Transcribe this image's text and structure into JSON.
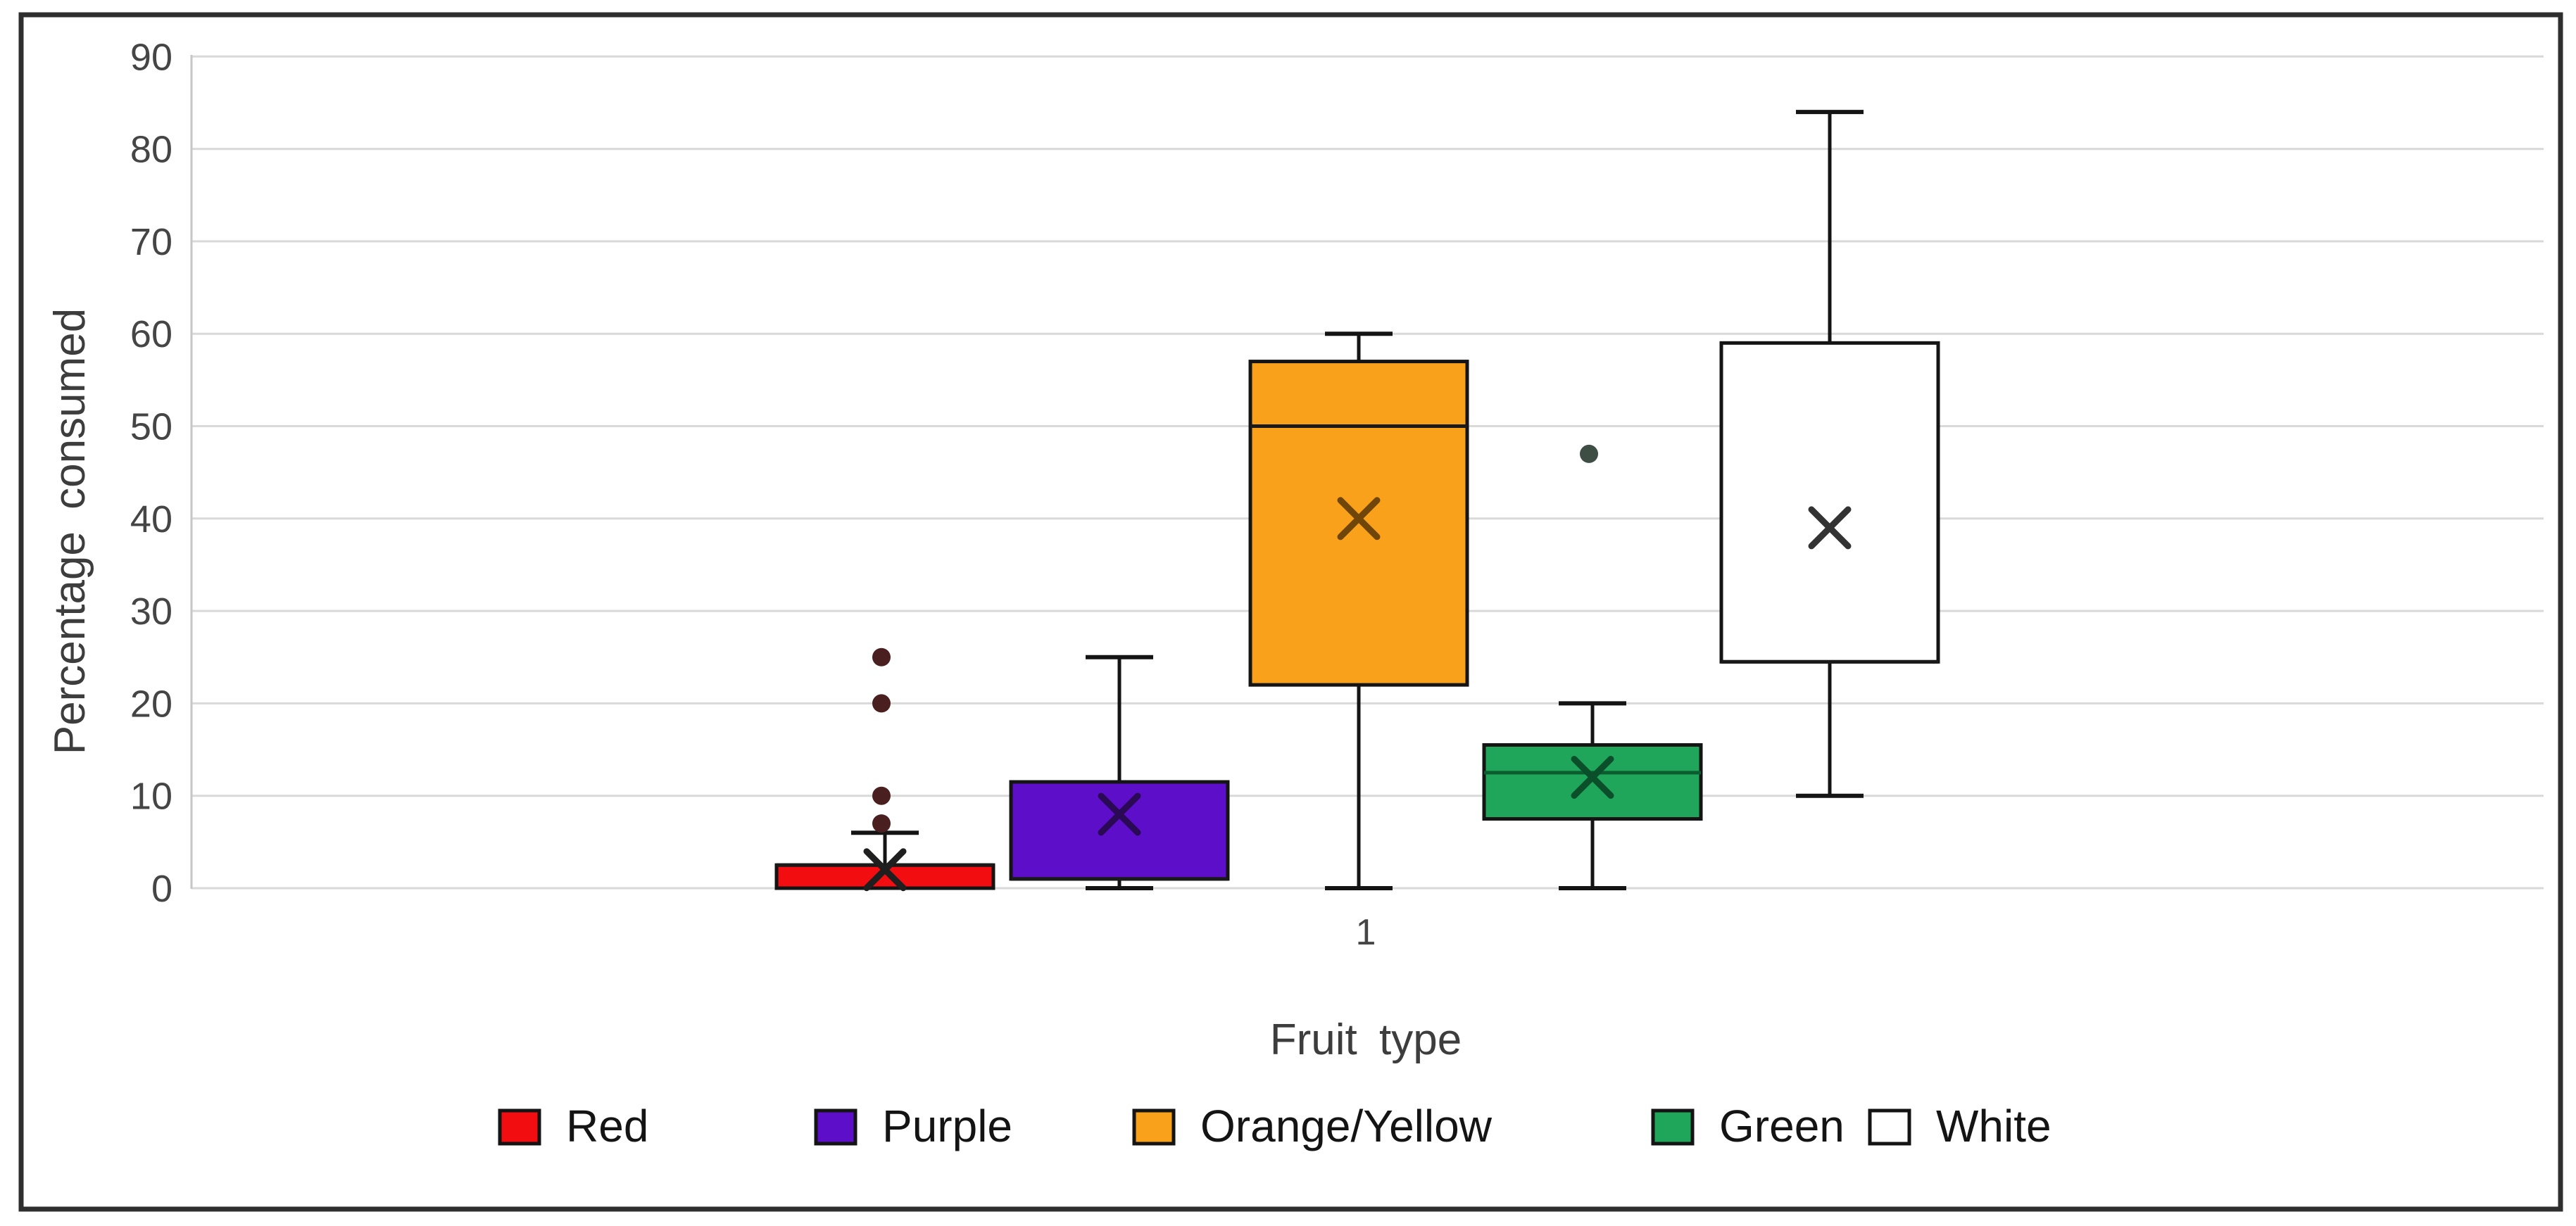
{
  "chart_data": {
    "type": "box",
    "title": "",
    "xlabel": "Fruit type",
    "ylabel": "Percentage consumed",
    "categories": [
      "1"
    ],
    "x_tick_label": "1",
    "ylim": [
      0,
      90
    ],
    "yticks": [
      0,
      10,
      20,
      30,
      40,
      50,
      60,
      70,
      80,
      90
    ],
    "grid": "horizontal-gridlines-on",
    "legend_position": "bottom",
    "series": [
      {
        "name": "Red",
        "color": "#f20d10",
        "min": 0,
        "q1": 0,
        "median": 2.5,
        "q3": 2.5,
        "max": 6,
        "mean": 2,
        "outliers": [
          7,
          10,
          20,
          25
        ],
        "mean_color": "#1f1f1f",
        "median_color": "#1a1a1a",
        "outlier_color": "#4a1f1f"
      },
      {
        "name": "Purple",
        "color": "#5d0ec9",
        "min": 0,
        "q1": 1,
        "median": 1,
        "q3": 11.5,
        "max": 25,
        "mean": 8,
        "outliers": [],
        "mean_color": "#2a0a55",
        "median_color": "#1a1a1a",
        "outlier_color": "#2a0a55"
      },
      {
        "name": "Orange/Yellow",
        "color": "#f9a11a",
        "min": 0,
        "q1": 22,
        "median": 50,
        "q3": 57,
        "max": 60,
        "mean": 40,
        "outliers": [],
        "mean_color": "#70450a",
        "median_color": "#1a1a1a",
        "outlier_color": "#70450a"
      },
      {
        "name": "Green",
        "color": "#1fa65a",
        "min": 0,
        "q1": 7.5,
        "median": 12.5,
        "q3": 15.5,
        "max": 20,
        "mean": 12,
        "outliers": [
          47
        ],
        "mean_color": "#0b4f2a",
        "median_color": "#0b5c2e",
        "outlier_color": "#3e4e44"
      },
      {
        "name": "White",
        "color": "#ffffff",
        "min": 10,
        "q1": 24.5,
        "median": 24.5,
        "q3": 59,
        "max": 84,
        "mean": 39,
        "outliers": [],
        "mean_color": "#333333",
        "median_color": "#1a1a1a",
        "outlier_color": "#333333"
      }
    ],
    "style_colors": {
      "frame_border": "#2e2e2e",
      "gridline": "#d9d9d9",
      "axis_line": "#c6c6c6",
      "box_stroke": "#141414",
      "tick_text": "#454545",
      "background": "#ffffff"
    }
  }
}
